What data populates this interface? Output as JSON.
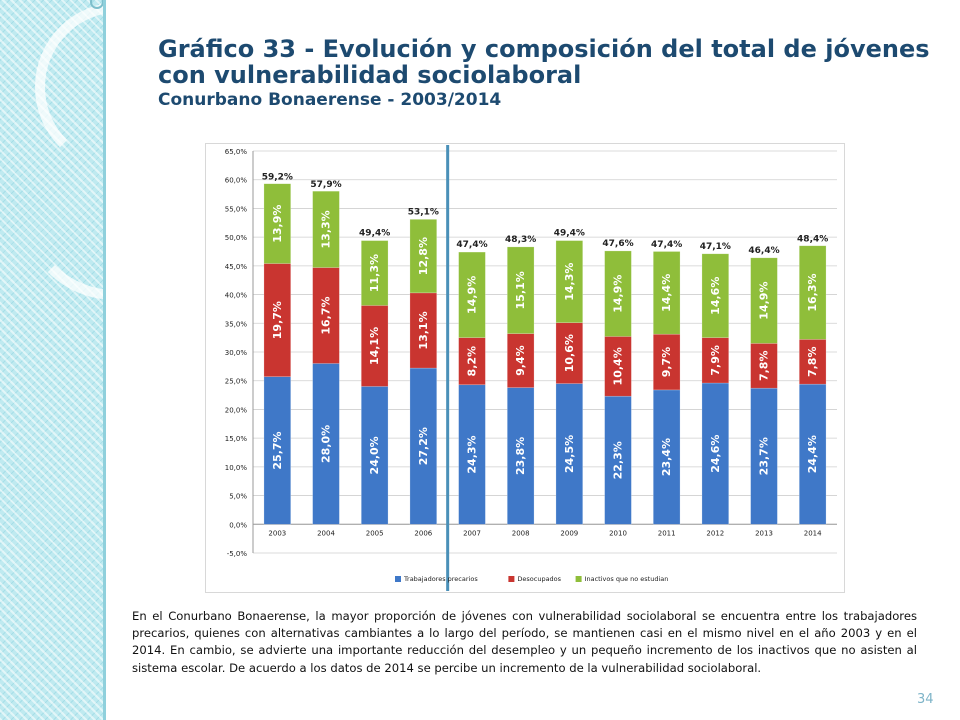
{
  "slide": {
    "title": "Gráfico 33 - Evolución y composición del total de jóvenes con vulnerabilidad sociolaboral",
    "subtitle": "Conurbano Bonaerense - 2003/2014",
    "description": "En el Conurbano Bonaerense, la mayor proporción de jóvenes con vulnerabilidad sociolaboral se encuentra entre los trabajadores precarios, quienes con alternativas cambiantes a lo largo del período, se mantienen casi en el mismo nivel en el año 2003 y en el 2014. En cambio, se advierte una importante reducción del desempleo y un pequeño incremento de los inactivos que no asisten al sistema escolar. De acuerdo a los datos de 2014 se percibe un incremento de la vulnerabilidad sociolaboral.",
    "page_number": "34"
  },
  "chart_data": {
    "type": "bar",
    "stacked": true,
    "categories": [
      "2003",
      "2004",
      "2005",
      "2006",
      "2007",
      "2008",
      "2009",
      "2010",
      "2011",
      "2012",
      "2013",
      "2014"
    ],
    "series": [
      {
        "name": "Trabajadores precarios",
        "color": "#3f78c8",
        "values": [
          25.7,
          28.0,
          24.0,
          27.2,
          24.3,
          23.8,
          24.5,
          22.3,
          23.4,
          24.6,
          23.7,
          24.4
        ],
        "labels": [
          "25,7%",
          "28,0%",
          "24,0%",
          "27,2%",
          "24,3%",
          "23,8%",
          "24,5%",
          "22,3%",
          "23,4%",
          "24,6%",
          "23,7%",
          "24,4%"
        ]
      },
      {
        "name": "Desocupados",
        "color": "#c93530",
        "values": [
          19.7,
          16.7,
          14.1,
          13.1,
          8.2,
          9.4,
          10.6,
          10.4,
          9.7,
          7.9,
          7.8,
          7.8
        ],
        "labels": [
          "19,7%",
          "16,7%",
          "14,1%",
          "13,1%",
          "8,2%",
          "9,4%",
          "10,6%",
          "10,4%",
          "9,7%",
          "7,9%",
          "7,8%",
          "7,8%"
        ]
      },
      {
        "name": "Inactivos que no estudian",
        "color": "#8fbe3a",
        "values": [
          13.9,
          13.3,
          11.3,
          12.8,
          14.9,
          15.1,
          14.3,
          14.9,
          14.4,
          14.6,
          14.9,
          16.3
        ],
        "labels": [
          "13,9%",
          "13,3%",
          "11,3%",
          "12,8%",
          "14,9%",
          "15,1%",
          "14,3%",
          "14,9%",
          "14,4%",
          "14,6%",
          "14,9%",
          "16,3%"
        ]
      }
    ],
    "totals": [
      59.2,
      57.9,
      49.4,
      53.1,
      47.4,
      48.3,
      49.4,
      47.6,
      47.4,
      47.1,
      46.4,
      48.4
    ],
    "total_labels": [
      "59,2%",
      "57,9%",
      "49,4%",
      "53,1%",
      "47,4%",
      "48,3%",
      "49,4%",
      "47,6%",
      "47,4%",
      "47,1%",
      "46,4%",
      "48,4%"
    ],
    "ylim": [
      -5,
      65
    ],
    "yticks": [
      -5,
      0,
      5,
      10,
      15,
      20,
      25,
      30,
      35,
      40,
      45,
      50,
      55,
      60,
      65
    ],
    "ytick_labels": [
      "-5,0%",
      "0,0%",
      "5,0%",
      "10,0%",
      "15,0%",
      "20,0%",
      "25,0%",
      "30,0%",
      "35,0%",
      "40,0%",
      "45,0%",
      "50,0%",
      "55,0%",
      "60,0%",
      "65,0%"
    ],
    "grid": true,
    "legend_position": "bottom",
    "marker_line_after_category": "2006",
    "marker_line_color": "#4a90b8"
  }
}
